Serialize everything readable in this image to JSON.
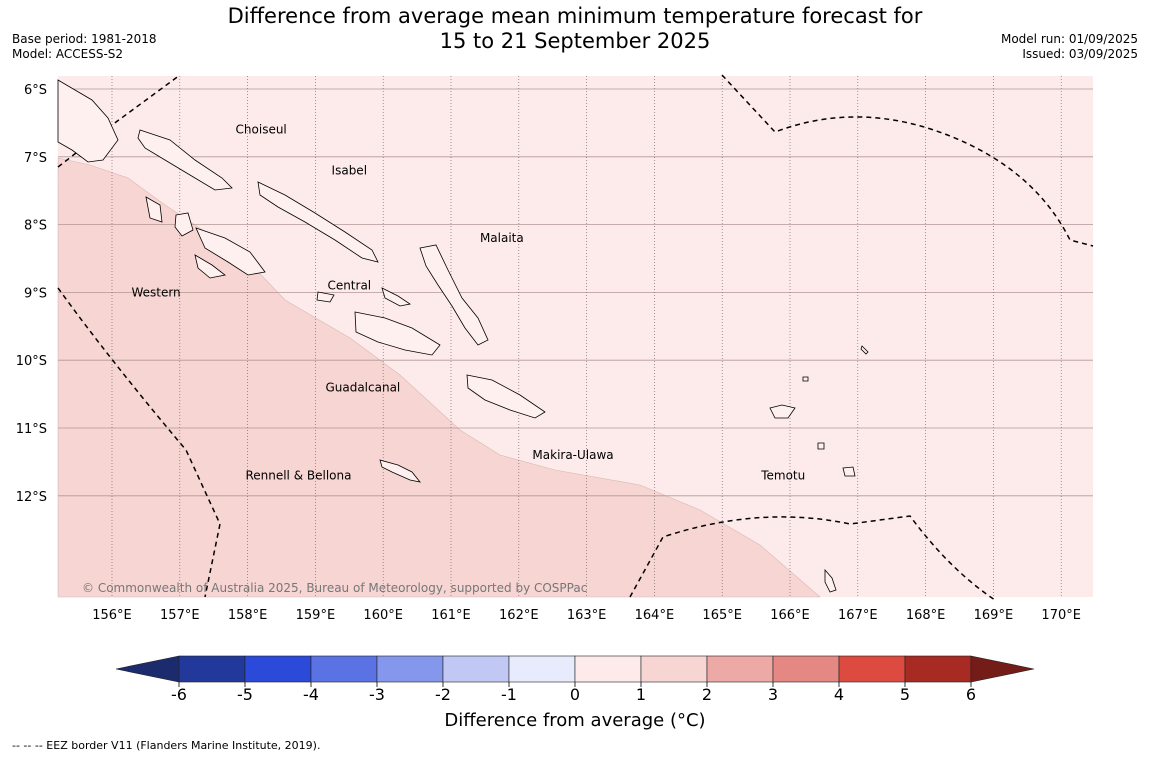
{
  "header": {
    "title_line1": "Difference from average mean minimum temperature forecast for",
    "title_line2": "15 to 21 September 2025",
    "base_period": "Base period: 1981-2018",
    "model": "Model: ACCESS-S2",
    "model_run": "Model run: 01/09/2025",
    "issued": "Issued: 03/09/2025"
  },
  "map": {
    "lon_range": [
      155.2,
      170.5
    ],
    "lat_range": [
      -13.4,
      -5.8
    ],
    "lat_ticks": [
      {
        "value": -6,
        "label": "6°S"
      },
      {
        "value": -7,
        "label": "7°S"
      },
      {
        "value": -8,
        "label": "8°S"
      },
      {
        "value": -9,
        "label": "9°S"
      },
      {
        "value": -10,
        "label": "10°S"
      },
      {
        "value": -11,
        "label": "11°S"
      },
      {
        "value": -12,
        "label": "12°S"
      }
    ],
    "lon_ticks": [
      {
        "value": 156,
        "label": "156°E"
      },
      {
        "value": 157,
        "label": "157°E"
      },
      {
        "value": 158,
        "label": "158°E"
      },
      {
        "value": 159,
        "label": "159°E"
      },
      {
        "value": 160,
        "label": "160°E"
      },
      {
        "value": 161,
        "label": "161°E"
      },
      {
        "value": 162,
        "label": "162°E"
      },
      {
        "value": 163,
        "label": "163°E"
      },
      {
        "value": 164,
        "label": "164°E"
      },
      {
        "value": 165,
        "label": "165°E"
      },
      {
        "value": 166,
        "label": "166°E"
      },
      {
        "value": 167,
        "label": "167°E"
      },
      {
        "value": 168,
        "label": "168°E"
      },
      {
        "value": 169,
        "label": "169°E"
      },
      {
        "value": 170,
        "label": "170°E"
      }
    ],
    "places": [
      {
        "name": "Choiseul",
        "lon": 158.2,
        "lat": -6.6
      },
      {
        "name": "Isabel",
        "lon": 159.5,
        "lat": -7.2
      },
      {
        "name": "Malaita",
        "lon": 161.75,
        "lat": -8.2
      },
      {
        "name": "Central",
        "lon": 159.5,
        "lat": -8.9
      },
      {
        "name": "Western",
        "lon": 156.65,
        "lat": -9.0
      },
      {
        "name": "Guadalcanal",
        "lon": 159.7,
        "lat": -10.4
      },
      {
        "name": "Makira-Ulawa",
        "lon": 162.8,
        "lat": -11.4
      },
      {
        "name": "Rennell & Bellona",
        "lon": 158.75,
        "lat": -11.7
      },
      {
        "name": "Temotu",
        "lon": 165.9,
        "lat": -11.7
      }
    ],
    "fill_colors": {
      "range_0_1": "#fcebea",
      "range_1_2": "#f6d5d3"
    },
    "copyright": "© Commonwealth of Australia 2025, Bureau of Meteorology, supported by COSPPac"
  },
  "colorbar": {
    "label": "Difference from average (°C)",
    "ticks": [
      "-6",
      "-5",
      "-4",
      "-3",
      "-2",
      "-1",
      "0",
      "1",
      "2",
      "3",
      "4",
      "5",
      "6"
    ],
    "colors": [
      "#22399b",
      "#2b4ad9",
      "#5a72e4",
      "#8597ec",
      "#c0c8f3",
      "#e8ebfb",
      "#fcebea",
      "#f6d5d3",
      "#eda9a6",
      "#e58782",
      "#dc4a40",
      "#a72a23"
    ],
    "under_color": "#1c2b6e",
    "over_color": "#741d18"
  },
  "footnote": "--  --  -- EEZ border V11 (Flanders Marine Institute, 2019)."
}
